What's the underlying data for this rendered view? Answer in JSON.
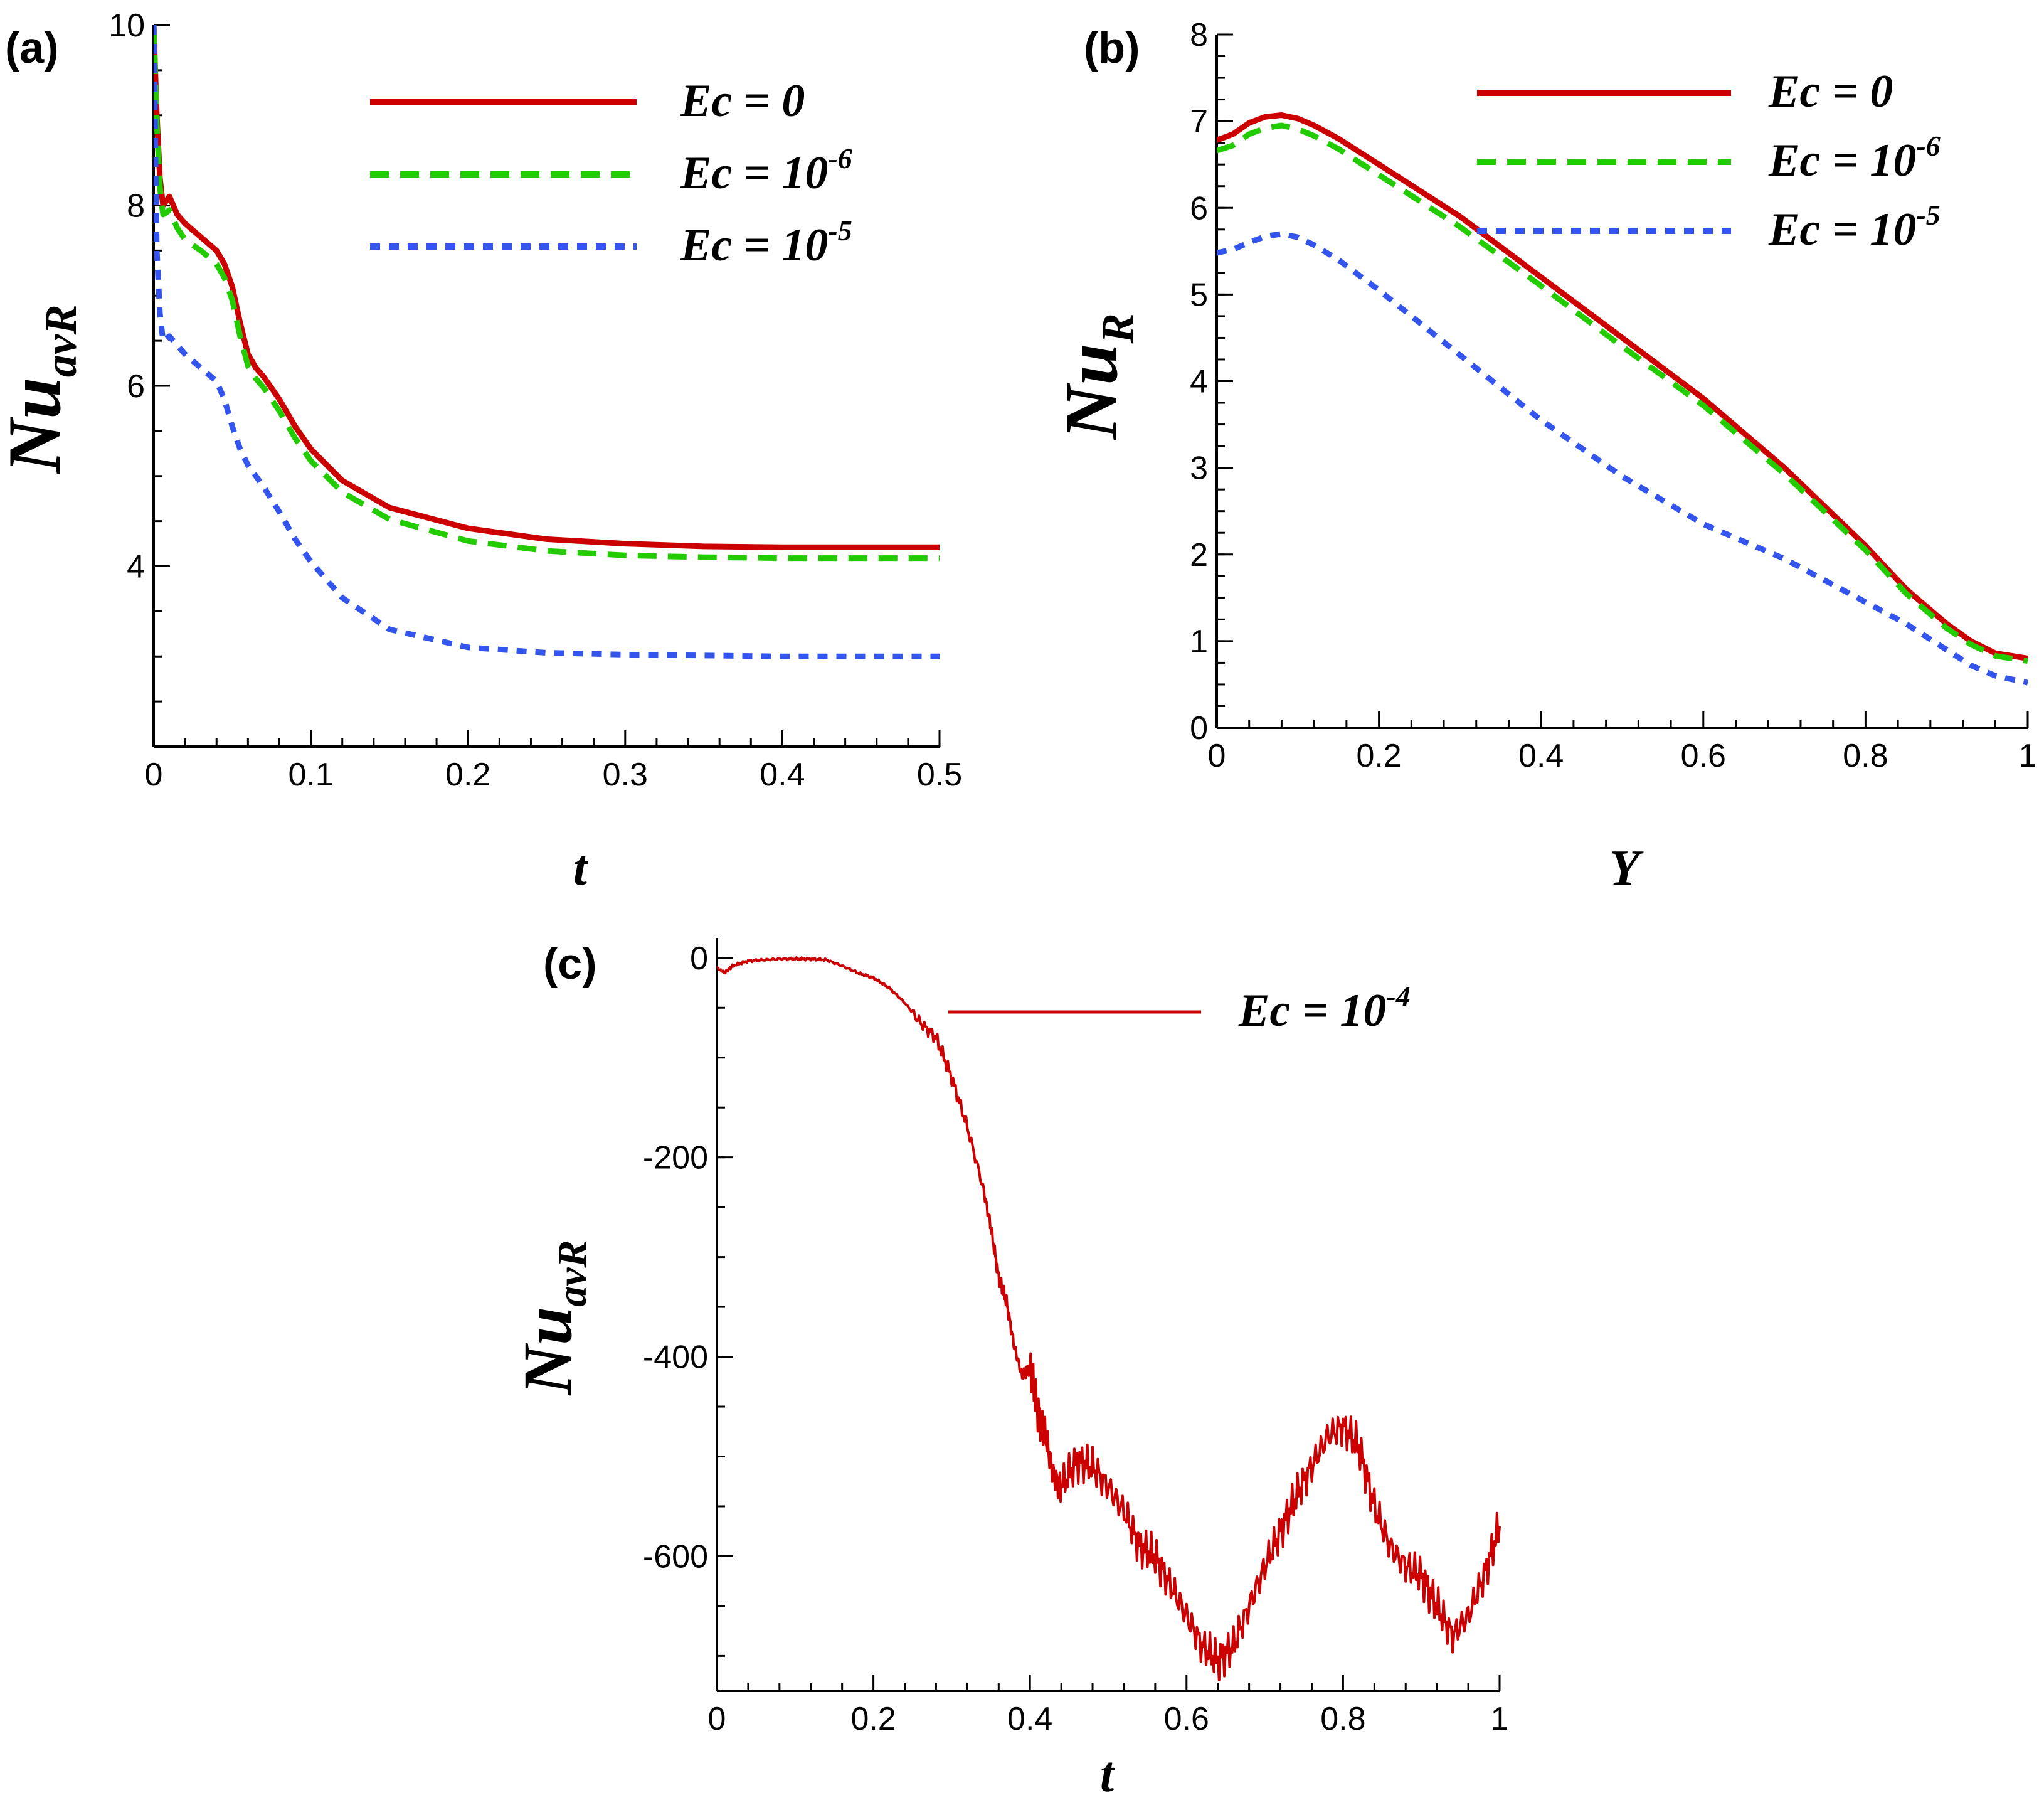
{
  "chart_data": [
    {
      "panel": "(a)",
      "type": "line",
      "xlabel": "t",
      "ylabel_main": "Nu",
      "ylabel_sub": "avR",
      "xlim": [
        0,
        0.5
      ],
      "ylim": [
        2,
        10
      ],
      "xticks": [
        "0",
        "0.1",
        "0.2",
        "0.3",
        "0.4",
        "0.5"
      ],
      "yticks": [
        "4",
        "6",
        "8",
        "10"
      ],
      "series": [
        {
          "name_base": "Ec = ",
          "name_value": "0",
          "name_exp": "",
          "color": "#cc0000",
          "dash": "solid",
          "x": [
            0,
            0.002,
            0.004,
            0.006,
            0.008,
            0.01,
            0.015,
            0.02,
            0.03,
            0.04,
            0.045,
            0.05,
            0.055,
            0.06,
            0.065,
            0.07,
            0.08,
            0.09,
            0.1,
            0.12,
            0.15,
            0.2,
            0.25,
            0.3,
            0.35,
            0.4,
            0.45,
            0.5
          ],
          "y": [
            10,
            9.0,
            8.3,
            8.0,
            8.05,
            8.1,
            7.9,
            7.8,
            7.65,
            7.5,
            7.35,
            7.1,
            6.7,
            6.35,
            6.2,
            6.1,
            5.85,
            5.55,
            5.3,
            4.95,
            4.65,
            4.42,
            4.3,
            4.25,
            4.22,
            4.21,
            4.21,
            4.21
          ]
        },
        {
          "name_base": "Ec = ",
          "name_value": "10",
          "name_exp": "-6",
          "color": "#22cc00",
          "dash": "30,18",
          "x": [
            0,
            0.002,
            0.004,
            0.006,
            0.008,
            0.01,
            0.015,
            0.02,
            0.03,
            0.04,
            0.045,
            0.05,
            0.055,
            0.06,
            0.065,
            0.07,
            0.08,
            0.09,
            0.1,
            0.12,
            0.15,
            0.2,
            0.25,
            0.3,
            0.35,
            0.4,
            0.45,
            0.5
          ],
          "y": [
            10,
            8.9,
            8.2,
            7.9,
            7.92,
            7.95,
            7.75,
            7.62,
            7.5,
            7.35,
            7.2,
            6.95,
            6.55,
            6.22,
            6.08,
            5.98,
            5.72,
            5.42,
            5.17,
            4.82,
            4.52,
            4.28,
            4.17,
            4.12,
            4.1,
            4.09,
            4.09,
            4.09
          ]
        },
        {
          "name_base": "Ec = ",
          "name_value": "10",
          "name_exp": "-5",
          "color": "#3355ee",
          "dash": "16,14",
          "x": [
            0,
            0.002,
            0.004,
            0.006,
            0.008,
            0.01,
            0.015,
            0.02,
            0.03,
            0.04,
            0.045,
            0.05,
            0.055,
            0.06,
            0.065,
            0.07,
            0.08,
            0.09,
            0.1,
            0.12,
            0.15,
            0.2,
            0.25,
            0.3,
            0.35,
            0.4,
            0.45,
            0.5
          ],
          "y": [
            10,
            7.5,
            6.8,
            6.5,
            6.52,
            6.55,
            6.45,
            6.35,
            6.2,
            6.05,
            5.85,
            5.55,
            5.3,
            5.12,
            5.0,
            4.88,
            4.6,
            4.3,
            4.05,
            3.65,
            3.3,
            3.1,
            3.04,
            3.02,
            3.01,
            3.0,
            3.0,
            3.0
          ]
        }
      ]
    },
    {
      "panel": "(b)",
      "type": "line",
      "xlabel": "Y",
      "ylabel_main": "Nu",
      "ylabel_sub": "R",
      "xlim": [
        0,
        1
      ],
      "ylim": [
        0,
        8
      ],
      "xticks": [
        "0",
        "0.2",
        "0.4",
        "0.6",
        "0.8",
        "1"
      ],
      "yticks": [
        "0",
        "1",
        "2",
        "3",
        "4",
        "5",
        "6",
        "7",
        "8"
      ],
      "series": [
        {
          "name_base": "Ec = ",
          "name_value": "0",
          "name_exp": "",
          "color": "#cc0000",
          "dash": "solid",
          "x": [
            0,
            0.02,
            0.04,
            0.06,
            0.08,
            0.1,
            0.12,
            0.15,
            0.2,
            0.3,
            0.4,
            0.5,
            0.6,
            0.7,
            0.8,
            0.85,
            0.9,
            0.93,
            0.96,
            1.0
          ],
          "y": [
            6.78,
            6.85,
            6.98,
            7.05,
            7.07,
            7.03,
            6.95,
            6.8,
            6.5,
            5.9,
            5.2,
            4.5,
            3.8,
            3.0,
            2.1,
            1.6,
            1.2,
            1.0,
            0.86,
            0.8
          ]
        },
        {
          "name_base": "Ec = ",
          "name_value": "10",
          "name_exp": "-6",
          "color": "#22cc00",
          "dash": "30,18",
          "x": [
            0,
            0.02,
            0.04,
            0.06,
            0.08,
            0.1,
            0.12,
            0.15,
            0.2,
            0.3,
            0.4,
            0.5,
            0.6,
            0.7,
            0.8,
            0.85,
            0.9,
            0.93,
            0.96,
            1.0
          ],
          "y": [
            6.66,
            6.72,
            6.85,
            6.92,
            6.95,
            6.91,
            6.83,
            6.68,
            6.38,
            5.78,
            5.1,
            4.4,
            3.72,
            2.93,
            2.05,
            1.55,
            1.15,
            0.96,
            0.83,
            0.77
          ]
        },
        {
          "name_base": "Ec = ",
          "name_value": "10",
          "name_exp": "-5",
          "color": "#3355ee",
          "dash": "16,14",
          "x": [
            0,
            0.02,
            0.04,
            0.06,
            0.08,
            0.1,
            0.12,
            0.15,
            0.2,
            0.3,
            0.4,
            0.5,
            0.6,
            0.7,
            0.8,
            0.85,
            0.9,
            0.93,
            0.96,
            1.0
          ],
          "y": [
            5.48,
            5.52,
            5.6,
            5.67,
            5.7,
            5.66,
            5.57,
            5.4,
            5.05,
            4.3,
            3.55,
            2.9,
            2.35,
            1.95,
            1.45,
            1.2,
            0.9,
            0.72,
            0.6,
            0.52
          ]
        }
      ]
    },
    {
      "panel": "(c)",
      "type": "line",
      "xlabel": "t",
      "ylabel_main": "Nu",
      "ylabel_sub": "avR",
      "xlim": [
        0,
        1
      ],
      "ylim": [
        -735,
        20
      ],
      "xticks": [
        "0",
        "0.2",
        "0.4",
        "0.6",
        "0.8",
        "1"
      ],
      "yticks": [
        "0",
        "-200",
        "-400",
        "-600"
      ],
      "series": [
        {
          "name_base": "Ec = ",
          "name_value": "10",
          "name_exp": "-4",
          "color": "#cc0000",
          "dash": "solid",
          "x": [
            0,
            0.01,
            0.02,
            0.04,
            0.06,
            0.08,
            0.1,
            0.12,
            0.14,
            0.16,
            0.18,
            0.2,
            0.22,
            0.24,
            0.26,
            0.28,
            0.3,
            0.32,
            0.34,
            0.35,
            0.36,
            0.37,
            0.38,
            0.39,
            0.4,
            0.41,
            0.42,
            0.43,
            0.44,
            0.46,
            0.48,
            0.5,
            0.52,
            0.54,
            0.56,
            0.58,
            0.6,
            0.62,
            0.64,
            0.66,
            0.68,
            0.7,
            0.72,
            0.74,
            0.76,
            0.78,
            0.8,
            0.82,
            0.84,
            0.86,
            0.88,
            0.9,
            0.92,
            0.94,
            0.96,
            0.98,
            1.0
          ],
          "y": [
            -10,
            -15,
            -8,
            -3,
            -2,
            -1,
            -1,
            -1,
            -2,
            -8,
            -15,
            -20,
            -30,
            -45,
            -65,
            -80,
            -120,
            -170,
            -230,
            -270,
            -320,
            -345,
            -390,
            -420,
            -410,
            -455,
            -480,
            -520,
            -530,
            -505,
            -510,
            -530,
            -555,
            -590,
            -600,
            -630,
            -660,
            -690,
            -705,
            -690,
            -650,
            -610,
            -575,
            -540,
            -510,
            -480,
            -470,
            -490,
            -550,
            -590,
            -610,
            -620,
            -650,
            -680,
            -660,
            -620,
            -570
          ]
        }
      ]
    }
  ]
}
